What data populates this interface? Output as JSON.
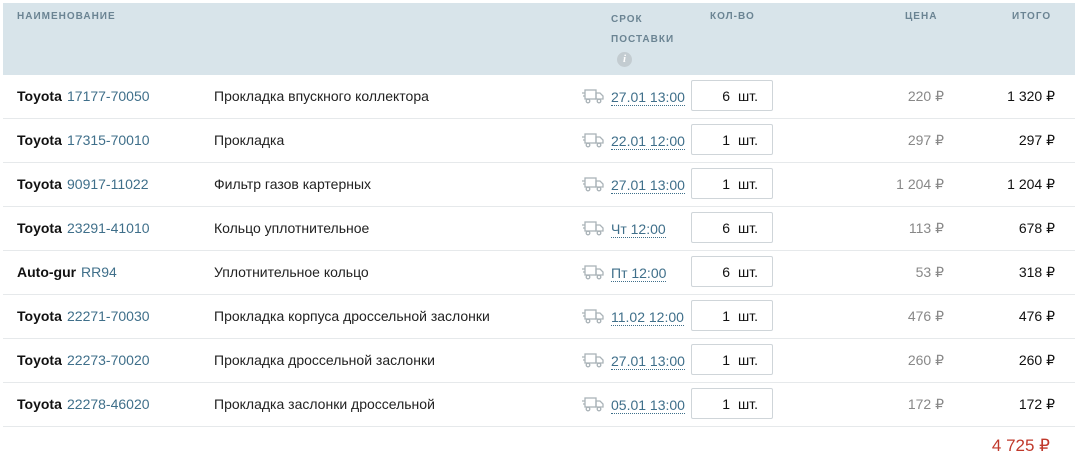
{
  "header": {
    "name": "НАИМЕНОВАНИЕ",
    "delivery_line1": "СРОК",
    "delivery_line2": "ПОСТАВКИ",
    "info_icon": "i",
    "qty": "КОЛ-ВО",
    "price": "ЦЕНА",
    "total": "ИТОГО"
  },
  "rows": [
    {
      "brand": "Toyota",
      "code": "17177-70050",
      "desc": "Прокладка впускного коллектора",
      "date": "27.01 13:00",
      "qty": "6",
      "unit": "шт.",
      "price": "220 ₽",
      "total": "1 320 ₽"
    },
    {
      "brand": "Toyota",
      "code": "17315-70010",
      "desc": "Прокладка",
      "date": "22.01 12:00",
      "qty": "1",
      "unit": "шт.",
      "price": "297 ₽",
      "total": "297 ₽"
    },
    {
      "brand": "Toyota",
      "code": "90917-11022",
      "desc": "Фильтр газов картерных",
      "date": "27.01 13:00",
      "qty": "1",
      "unit": "шт.",
      "price": "1 204 ₽",
      "total": "1 204 ₽"
    },
    {
      "brand": "Toyota",
      "code": "23291-41010",
      "desc": "Кольцо уплотнительное",
      "date": "Чт 12:00",
      "qty": "6",
      "unit": "шт.",
      "price": "113 ₽",
      "total": "678 ₽"
    },
    {
      "brand": "Auto-gur",
      "code": "RR94",
      "desc": "Уплотнительное кольцо",
      "date": "Пт 12:00",
      "qty": "6",
      "unit": "шт.",
      "price": "53 ₽",
      "total": "318 ₽"
    },
    {
      "brand": "Toyota",
      "code": "22271-70030",
      "desc": "Прокладка корпуса дроссельной заслонки",
      "date": "11.02 12:00",
      "qty": "1",
      "unit": "шт.",
      "price": "476 ₽",
      "total": "476 ₽"
    },
    {
      "brand": "Toyota",
      "code": "22273-70020",
      "desc": "Прокладка дроссельной заслонки",
      "date": "27.01 13:00",
      "qty": "1",
      "unit": "шт.",
      "price": "260 ₽",
      "total": "260 ₽"
    },
    {
      "brand": "Toyota",
      "code": "22278-46020",
      "desc": "Прокладка заслонки дроссельной",
      "date": "05.01 13:00",
      "qty": "1",
      "unit": "шт.",
      "price": "172 ₽",
      "total": "172 ₽"
    }
  ],
  "grand_total": "4 725 ₽",
  "colors": {
    "header_bg": "#d8e4ea",
    "link": "#3f6f8a",
    "grand_total": "#c0392b"
  }
}
